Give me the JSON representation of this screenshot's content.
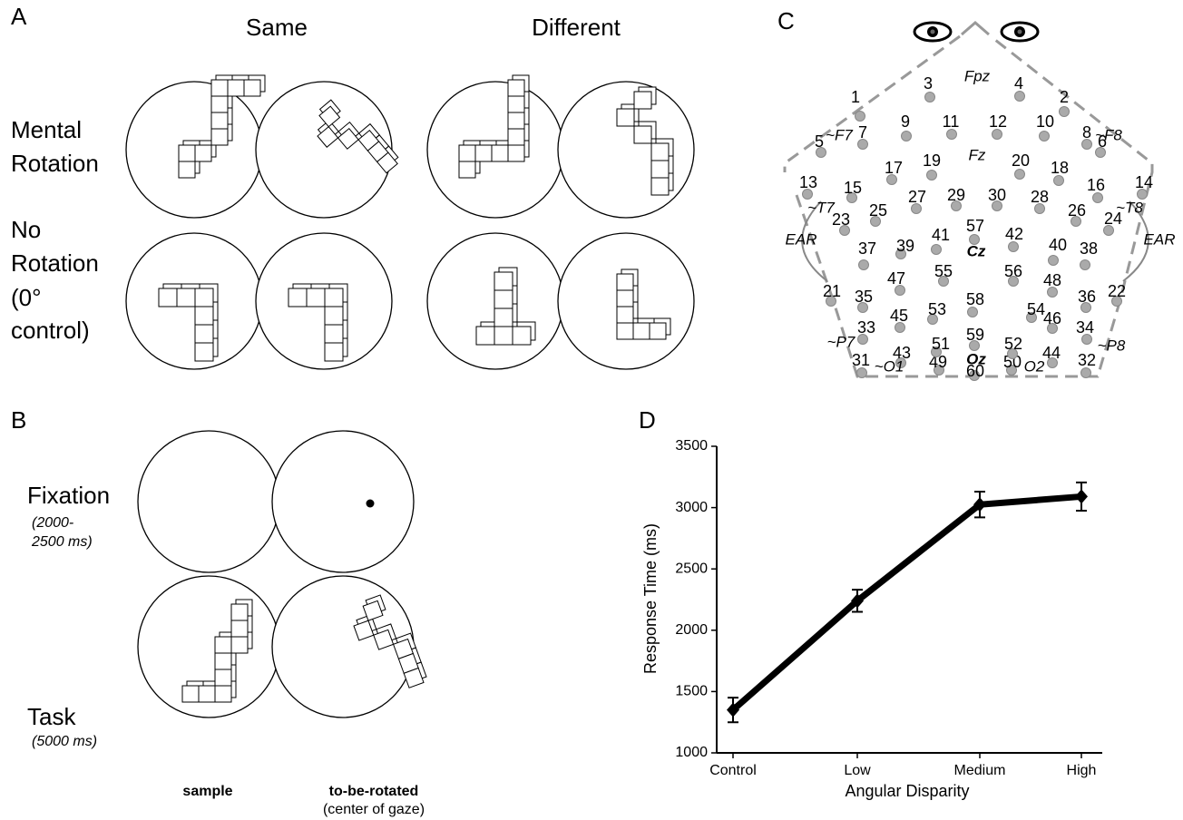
{
  "panel_labels": [
    "A",
    "B",
    "C",
    "D"
  ],
  "panel_a": {
    "columns": [
      "Same",
      "Different"
    ],
    "rows": [
      {
        "lines": [
          "Mental",
          "Rotation"
        ]
      },
      {
        "lines": [
          "No",
          "Rotation",
          "(0°",
          "control)"
        ]
      }
    ]
  },
  "panel_b": {
    "rows": [
      {
        "label": "Fixation",
        "duration": [
          "(2000-",
          "2500 ms)"
        ]
      },
      {
        "label": "Task",
        "duration": [
          "(5000 ms)"
        ]
      }
    ],
    "captions": {
      "sample": "sample",
      "rotated": "to-be-rotated",
      "gaze": "(center of gaze)"
    }
  },
  "panel_c": {
    "electrodes": [
      "1",
      "2",
      "3",
      "4",
      "5",
      "6",
      "7",
      "8",
      "9",
      "10",
      "11",
      "12",
      "13",
      "14",
      "15",
      "16",
      "17",
      "18",
      "19",
      "20",
      "21",
      "22",
      "23",
      "24",
      "25",
      "26",
      "27",
      "28",
      "29",
      "30",
      "31",
      "32",
      "33",
      "34",
      "35",
      "36",
      "37",
      "38",
      "39",
      "40",
      "41",
      "42",
      "43",
      "44",
      "45",
      "46",
      "47",
      "48",
      "49",
      "50",
      "51",
      "52",
      "53",
      "54",
      "55",
      "56",
      "57",
      "58",
      "59",
      "60"
    ],
    "landmarks": [
      "Fpz",
      "~F7",
      "~F8",
      "Fz",
      "~T7",
      "~T8",
      "~P7",
      "~P8",
      "~O1",
      "O2"
    ],
    "midline": [
      "Cz",
      "Oz"
    ],
    "ears": [
      "EAR",
      "EAR"
    ]
  },
  "chart_data": {
    "type": "line",
    "categories": [
      "Control",
      "Low",
      "Medium",
      "High"
    ],
    "values": [
      1350,
      2240,
      3025,
      3090
    ],
    "errors": [
      100,
      90,
      105,
      115
    ],
    "color": "#000000",
    "ylim": [
      1000,
      3500
    ],
    "yticks": [
      1000,
      1500,
      2000,
      2500,
      3000,
      3500
    ],
    "xlabel": "Angular Disparity",
    "ylabel": "Response Time (ms)"
  }
}
